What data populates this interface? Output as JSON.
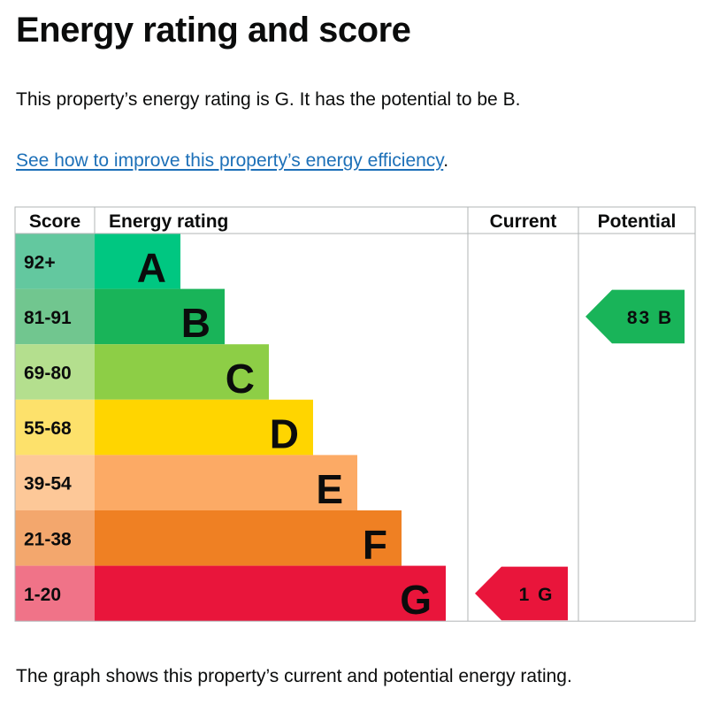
{
  "page": {
    "title": "Energy rating and score",
    "summary": "This property’s energy rating is G. It has the potential to be B.",
    "improve_link": "See how to improve this property’s energy efficiency",
    "improve_suffix": ".",
    "footer": "The graph shows this property’s current and potential energy rating."
  },
  "chart_data": {
    "type": "bar",
    "title": "",
    "headers": {
      "score": "Score",
      "rating": "Energy rating",
      "current": "Current",
      "potential": "Potential"
    },
    "bands": [
      {
        "letter": "A",
        "score_range": "92+",
        "color": "#00c781",
        "score_color": "#63c89f"
      },
      {
        "letter": "B",
        "score_range": "81-91",
        "color": "#19b459",
        "score_color": "#71c68f"
      },
      {
        "letter": "C",
        "score_range": "69-80",
        "color": "#8dce46",
        "score_color": "#b4df8e"
      },
      {
        "letter": "D",
        "score_range": "55-68",
        "color": "#ffd500",
        "score_color": "#fde16b"
      },
      {
        "letter": "E",
        "score_range": "39-54",
        "color": "#fcaa65",
        "score_color": "#fdc898"
      },
      {
        "letter": "F",
        "score_range": "21-38",
        "color": "#ef8023",
        "score_color": "#f3a76d"
      },
      {
        "letter": "G",
        "score_range": "1-20",
        "color": "#e9153b",
        "score_color": "#f07388"
      }
    ],
    "current": {
      "score": 1,
      "band": "G",
      "label": "1 G"
    },
    "potential": {
      "score": 83,
      "band": "B",
      "label": "83 B"
    }
  }
}
